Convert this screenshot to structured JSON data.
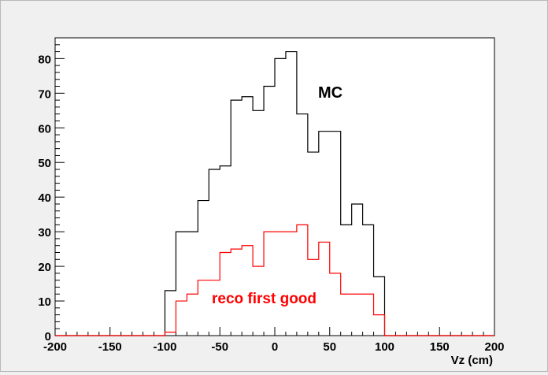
{
  "chart_data": {
    "type": "histogram",
    "xlabel": "Vz (cm)",
    "ylabel": "",
    "xlim": [
      -200,
      200
    ],
    "ylim": [
      0,
      86
    ],
    "x_ticks": [
      -200,
      -150,
      -100,
      -50,
      0,
      50,
      100,
      150,
      200
    ],
    "y_ticks": [
      0,
      10,
      20,
      30,
      40,
      50,
      60,
      70,
      80
    ],
    "grid": false,
    "bin_width": 10,
    "bin_edges": [
      -200,
      -190,
      -180,
      -170,
      -160,
      -150,
      -140,
      -130,
      -120,
      -110,
      -100,
      -90,
      -80,
      -70,
      -60,
      -50,
      -40,
      -30,
      -20,
      -10,
      0,
      10,
      20,
      30,
      40,
      50,
      60,
      70,
      80,
      90,
      100,
      110,
      120,
      130,
      140,
      150,
      160,
      170,
      180,
      190,
      200
    ],
    "series": [
      {
        "name": "MC",
        "color": "#000000",
        "values": [
          0,
          0,
          0,
          0,
          0,
          0,
          0,
          0,
          0,
          0,
          13,
          30,
          30,
          39,
          48,
          49,
          68,
          69,
          65,
          72,
          80,
          82,
          64,
          53,
          59,
          59,
          32,
          38,
          32,
          17,
          0,
          0,
          0,
          0,
          0,
          0,
          0,
          0,
          0,
          0
        ]
      },
      {
        "name": "reco first good",
        "color": "#ff0000",
        "values": [
          0,
          0,
          0,
          0,
          0,
          0,
          0,
          0,
          0,
          0,
          1,
          10,
          12,
          16,
          16,
          24,
          25,
          26,
          20,
          30,
          30,
          30,
          32,
          22,
          27,
          18,
          12,
          12,
          12,
          6,
          0,
          0,
          0,
          0,
          0,
          0,
          0,
          0,
          0,
          0
        ]
      }
    ],
    "annotations": [
      {
        "text": "MC",
        "color": "#000000"
      },
      {
        "text": "reco first good",
        "color": "#ff0000"
      }
    ]
  }
}
